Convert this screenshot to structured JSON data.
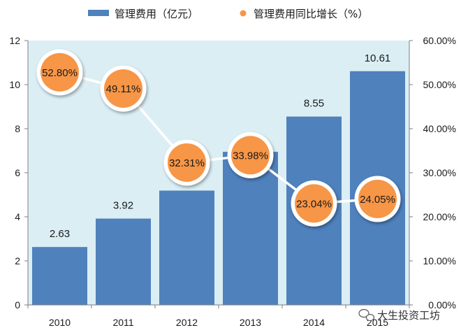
{
  "chart_data": {
    "type": "bar",
    "categories": [
      "2010",
      "2011",
      "2012",
      "2013",
      "2014",
      "2015"
    ],
    "series": [
      {
        "name": "管理费用（亿元）",
        "type": "bar",
        "axis": "left",
        "values": [
          2.63,
          3.92,
          5.19,
          6.95,
          8.55,
          10.61
        ],
        "labels": [
          "2.63",
          "3.92",
          "5.19",
          "6.95",
          "8.55",
          "10.61"
        ]
      },
      {
        "name": "管理费用同比增长（%）",
        "type": "line",
        "axis": "right",
        "values": [
          52.8,
          49.11,
          32.31,
          33.98,
          23.04,
          24.05
        ],
        "labels": [
          "52.80%",
          "49.11%",
          "32.31%",
          "33.98%",
          "23.04%",
          "24.05%"
        ]
      }
    ],
    "y_left": {
      "ylim": [
        0,
        12
      ],
      "ticks": [
        "0",
        "2",
        "4",
        "6",
        "8",
        "10",
        "12"
      ]
    },
    "y_right": {
      "ylim": [
        0,
        60
      ],
      "ticks": [
        "0.00%",
        "10.00%",
        "20.00%",
        "30.00%",
        "40.00%",
        "50.00%",
        "60.00%"
      ]
    },
    "legend_position": "top",
    "grid": false,
    "colors": {
      "bar": "#4f81bd",
      "point": "#f79646",
      "plot_bg": "#dbeef4"
    }
  },
  "watermark": {
    "text": "大生投资工坊",
    "icon": "wechat-icon"
  }
}
